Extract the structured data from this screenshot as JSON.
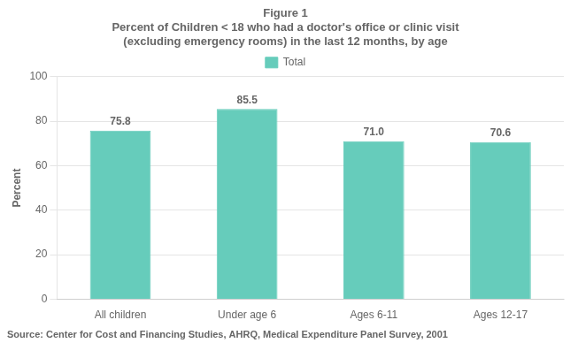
{
  "chart_data": {
    "type": "bar",
    "title": [
      "Figure 1",
      "Percent of Children < 18 who had a doctor's office or clinic visit",
      "(excluding emergency rooms) in the last 12 months, by age"
    ],
    "annotations": [
      "Source: Center for Cost and Financing Studies, AHRQ, Medical Expenditure Panel Survey, 2001"
    ],
    "categories": [
      "All children",
      "Under age 6",
      "Ages 6-11",
      "Ages 12-17"
    ],
    "series": [
      {
        "name": "Total",
        "color": "#66CCBB",
        "values": [
          75.8,
          85.5,
          71.0,
          70.6
        ],
        "value_labels": [
          "75.8",
          "85.5",
          "71.0",
          "70.6"
        ]
      }
    ],
    "ylabel": "Percent",
    "ylim": [
      0,
      100
    ],
    "yticks": [
      0,
      20,
      40,
      60,
      80,
      100
    ],
    "grid": true,
    "legend": "top",
    "data_labels": true
  }
}
